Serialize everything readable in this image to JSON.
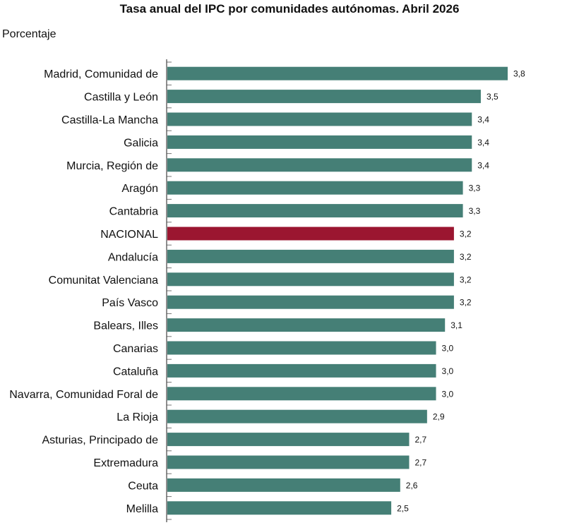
{
  "chart_data": {
    "type": "bar",
    "orientation": "horizontal",
    "title": "Tasa anual del IPC por comunidades autónomas. Abril 2026",
    "unit_label": "Porcentaje",
    "xlim": [
      0,
      4
    ],
    "grid": false,
    "legend": "none",
    "colors": {
      "default": "#457f76",
      "highlight": "#9b1630"
    },
    "highlight_category": "NACIONAL",
    "categories": [
      "Madrid, Comunidad de",
      "Castilla y León",
      "Castilla-La Mancha",
      "Galicia",
      "Murcia, Región de",
      "Aragón",
      "Cantabria",
      "NACIONAL",
      "Andalucía",
      "Comunitat Valenciana",
      "País Vasco",
      "Balears, Illes",
      "Canarias",
      "Cataluña",
      "Navarra, Comunidad Foral de",
      "La Rioja",
      "Asturias, Principado de",
      "Extremadura",
      "Ceuta",
      "Melilla"
    ],
    "values": [
      3.8,
      3.5,
      3.4,
      3.4,
      3.4,
      3.3,
      3.3,
      3.2,
      3.2,
      3.2,
      3.2,
      3.1,
      3.0,
      3.0,
      3.0,
      2.9,
      2.7,
      2.7,
      2.6,
      2.5
    ],
    "value_labels": [
      "3,8",
      "3,5",
      "3,4",
      "3,4",
      "3,4",
      "3,3",
      "3,3",
      "3,2",
      "3,2",
      "3,2",
      "3,2",
      "3,1",
      "3,0",
      "3,0",
      "3,0",
      "2,9",
      "2,7",
      "2,7",
      "2,6",
      "2,5"
    ]
  }
}
